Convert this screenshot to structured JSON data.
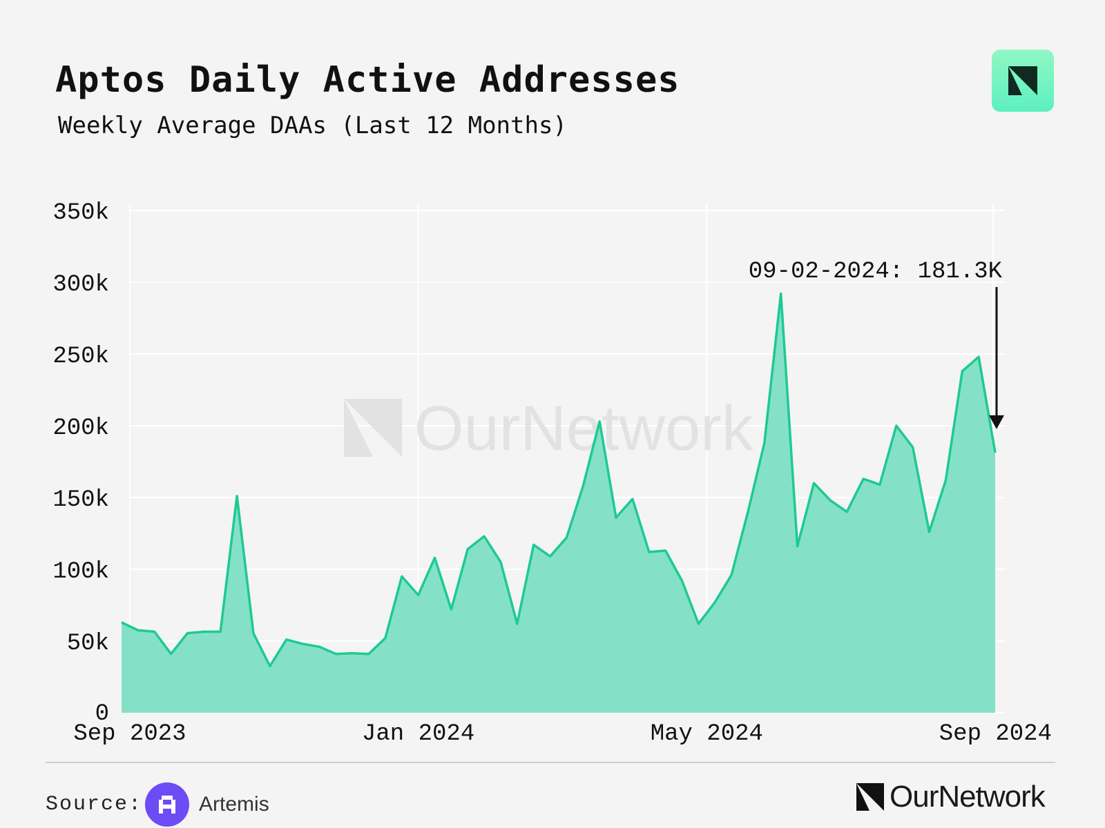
{
  "header": {
    "title": "Aptos Daily Active Addresses",
    "subtitle": "Weekly Average DAAs (Last 12 Months)"
  },
  "brand": {
    "name": "OurNetwork",
    "badge_color": "#7ef5c6"
  },
  "source": {
    "label": "Source:",
    "name": "Artemis",
    "logo_color": "#6b4cf5"
  },
  "colors": {
    "line": "#1ec994",
    "area": "#7ddfc5",
    "grid": "#ffffff",
    "background": "#f4f4f4"
  },
  "chart_data": {
    "type": "area",
    "title": "Aptos Daily Active Addresses",
    "subtitle": "Weekly Average DAAs (Last 12 Months)",
    "xlabel": "",
    "ylabel": "",
    "ylim": [
      0,
      350000
    ],
    "yticks": [
      0,
      50000,
      100000,
      150000,
      200000,
      250000,
      300000,
      350000
    ],
    "ytick_labels": [
      "0",
      "50k",
      "100k",
      "150k",
      "200k",
      "250k",
      "300k",
      "350k"
    ],
    "xticks": [
      0.5,
      18,
      35.5,
      53
    ],
    "xtick_labels": [
      "Sep 2023",
      "Jan 2024",
      "May 2024",
      "Sep 2024"
    ],
    "grid": true,
    "watermark": "OurNetwork",
    "series": [
      {
        "name": "Weekly Average DAAs",
        "x": [
          0,
          1,
          2,
          3,
          4,
          5,
          6,
          7,
          8,
          9,
          10,
          11,
          12,
          13,
          14,
          15,
          16,
          17,
          18,
          19,
          20,
          21,
          22,
          23,
          24,
          25,
          26,
          27,
          28,
          29,
          30,
          31,
          32,
          33,
          34,
          35,
          36,
          37,
          38,
          39,
          40,
          41,
          42,
          43,
          44,
          45,
          46,
          47,
          48,
          49,
          50,
          51,
          52,
          53
        ],
        "values": [
          63000,
          57500,
          56500,
          41000,
          55500,
          56500,
          56500,
          151000,
          55500,
          32500,
          51000,
          48000,
          46000,
          41000,
          41500,
          41000,
          52000,
          95000,
          82000,
          108000,
          72000,
          114000,
          123000,
          105000,
          62000,
          117000,
          109000,
          122000,
          158000,
          203000,
          136000,
          149000,
          112000,
          113000,
          92000,
          62000,
          77000,
          96000,
          140000,
          188000,
          292000,
          116000,
          160000,
          148000,
          140000,
          163000,
          159000,
          200000,
          185000,
          126000,
          162000,
          238000,
          248000,
          181300
        ]
      }
    ],
    "annotations": [
      {
        "text": "09-02-2024: 181.3K",
        "x": 53,
        "y": 181300,
        "arrow": true
      }
    ]
  }
}
